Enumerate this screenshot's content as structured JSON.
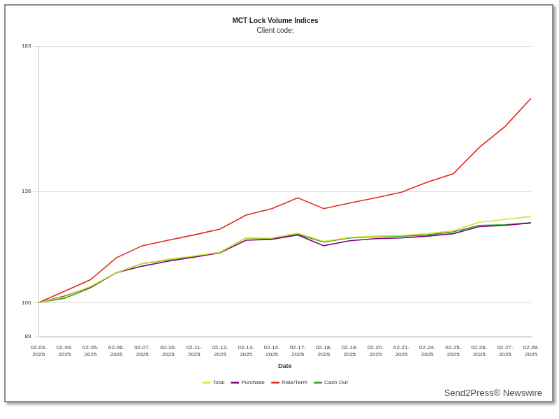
{
  "chart_data": {
    "type": "line",
    "title": "MCT Lock Volume Indices",
    "subtitle": "Client code:",
    "x_label": "Date",
    "categories": [
      "02-03-2025",
      "02-04-2025",
      "02-05-2025",
      "02-06-2025",
      "02-07-2025",
      "02-10-2025",
      "02-11-2025",
      "02-12-2025",
      "02-13-2025",
      "02-14-2025",
      "02-17-2025",
      "02-18-2025",
      "02-19-2025",
      "02-20-2025",
      "02-21-2025",
      "02-24-2025",
      "02-25-2025",
      "02-26-2025",
      "02-27-2025",
      "02-28-2025"
    ],
    "series": [
      {
        "name": "Total",
        "color": "#d8e030",
        "values": [
          100,
          101.9,
          105.2,
          109.7,
          112.6,
          114.0,
          115.1,
          116.3,
          120.9,
          120.9,
          122.5,
          119.8,
          121.1,
          121.5,
          121.7,
          122.3,
          123.3,
          126.0,
          126.9,
          127.9
        ]
      },
      {
        "name": "Purchase",
        "color": "#800080",
        "values": [
          100,
          102.1,
          105.0,
          109.7,
          111.8,
          113.4,
          114.7,
          116.1,
          120.2,
          120.5,
          121.9,
          118.4,
          120.0,
          120.7,
          120.9,
          121.5,
          122.3,
          124.6,
          125.0,
          125.8
        ]
      },
      {
        "name": "Rate/Term",
        "color": "#e02a1a",
        "values": [
          100,
          103.7,
          107.4,
          114.5,
          118.4,
          120.2,
          121.9,
          123.8,
          128.3,
          130.4,
          133.9,
          130.4,
          132.2,
          133.9,
          135.7,
          139.0,
          141.7,
          150.2,
          157.0,
          166.1
        ]
      },
      {
        "name": "Cash Out",
        "color": "#22a022",
        "values": [
          100,
          101.4,
          104.8,
          109.7,
          112.6,
          113.8,
          114.9,
          116.3,
          120.9,
          120.7,
          122.1,
          119.6,
          120.9,
          121.3,
          121.5,
          121.9,
          122.9,
          125.0,
          125.2,
          125.8
        ]
      }
    ],
    "ylim": [
      89,
      183
    ],
    "yticks": [
      89,
      100,
      136,
      183
    ],
    "grid": true,
    "legend": "bottom"
  },
  "credit": "Send2Press® Newswire"
}
